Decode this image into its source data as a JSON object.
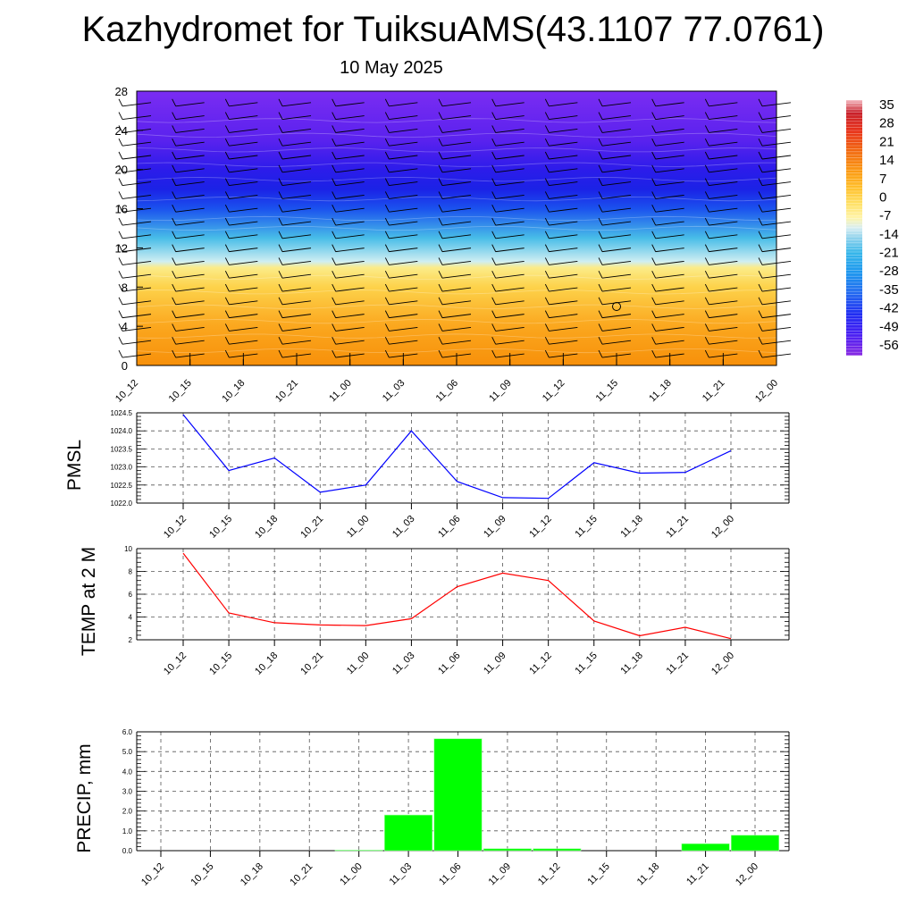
{
  "title": "Kazhydromet for TuiksuAMS(43.1107 77.0761)",
  "subtitle": "10 May 2025",
  "chart_data": [
    {
      "type": "heatmap",
      "name": "vertical-profile",
      "x_categories": [
        "10_12",
        "10_15",
        "10_18",
        "10_21",
        "11_00",
        "11_03",
        "11_06",
        "11_09",
        "11_12",
        "11_15",
        "11_18",
        "11_21",
        "12_00"
      ],
      "ylim": [
        0,
        28
      ],
      "y_ticks": [
        "0",
        "4",
        "8",
        "12",
        "16",
        "20",
        "24",
        "28"
      ],
      "colorbar_labels": [
        "35",
        "28",
        "21",
        "14",
        "7",
        "0",
        "-7",
        "-14",
        "-21",
        "-28",
        "-35",
        "-42",
        "-49",
        "-56"
      ],
      "colorbar_range": [
        -60,
        38
      ],
      "color_profile": [
        {
          "level": 0,
          "color": "#f7900a"
        },
        {
          "level": 4,
          "color": "#fba71e"
        },
        {
          "level": 8,
          "color": "#fdd24a"
        },
        {
          "level": 10,
          "color": "#fbec8a"
        },
        {
          "level": 10.6,
          "color": "#cfeef2"
        },
        {
          "level": 13,
          "color": "#48bde8"
        },
        {
          "level": 16,
          "color": "#1b52ee"
        },
        {
          "level": 18,
          "color": "#1b22e6"
        },
        {
          "level": 20,
          "color": "#2c1cea"
        },
        {
          "level": 23,
          "color": "#5a22ee"
        },
        {
          "level": 28,
          "color": "#7a2cf2"
        }
      ]
    },
    {
      "type": "line",
      "name": "pmsl",
      "ylabel": "PMSL",
      "categories": [
        "10_12",
        "10_15",
        "10_18",
        "10_21",
        "11_00",
        "11_03",
        "11_06",
        "11_09",
        "11_12",
        "11_15",
        "11_18",
        "11_21",
        "12_00"
      ],
      "values": [
        1024.45,
        1022.9,
        1023.25,
        1022.3,
        1022.5,
        1024.0,
        1022.6,
        1022.15,
        1022.13,
        1023.12,
        1022.83,
        1022.85,
        1023.45
      ],
      "ylim": [
        1022.0,
        1024.5
      ],
      "y_ticks": [
        "1022.0",
        "1022.5",
        "1023.0",
        "1023.5",
        "1024.0",
        "1024.5"
      ],
      "color": "#0000ff",
      "grid": true
    },
    {
      "type": "line",
      "name": "temp",
      "ylabel": "TEMP at 2 M",
      "categories": [
        "10_12",
        "10_15",
        "10_18",
        "10_21",
        "11_00",
        "11_03",
        "11_06",
        "11_09",
        "11_12",
        "11_15",
        "11_18",
        "11_21",
        "12_00"
      ],
      "values": [
        9.6,
        4.35,
        3.5,
        3.3,
        3.25,
        3.85,
        6.65,
        7.85,
        7.2,
        3.65,
        2.35,
        3.1,
        2.1
      ],
      "ylim": [
        2,
        10
      ],
      "y_ticks": [
        "2",
        "4",
        "6",
        "8",
        "10"
      ],
      "color": "#ff0000",
      "grid": true
    },
    {
      "type": "bar",
      "name": "precip",
      "ylabel": "PRECIP, mm",
      "categories": [
        "10_12",
        "10_15",
        "10_18",
        "10_21",
        "11_00",
        "11_03",
        "11_06",
        "11_09",
        "11_12",
        "11_15",
        "11_18",
        "11_21",
        "12_00"
      ],
      "values": [
        0,
        0,
        0,
        0,
        0.03,
        1.8,
        5.65,
        0.1,
        0.1,
        0,
        0,
        0.35,
        0.78
      ],
      "ylim": [
        0,
        6
      ],
      "y_ticks": [
        "0.0",
        "1.0",
        "2.0",
        "3.0",
        "4.0",
        "5.0",
        "6.0"
      ],
      "color": "#00ff00",
      "grid": true
    }
  ]
}
